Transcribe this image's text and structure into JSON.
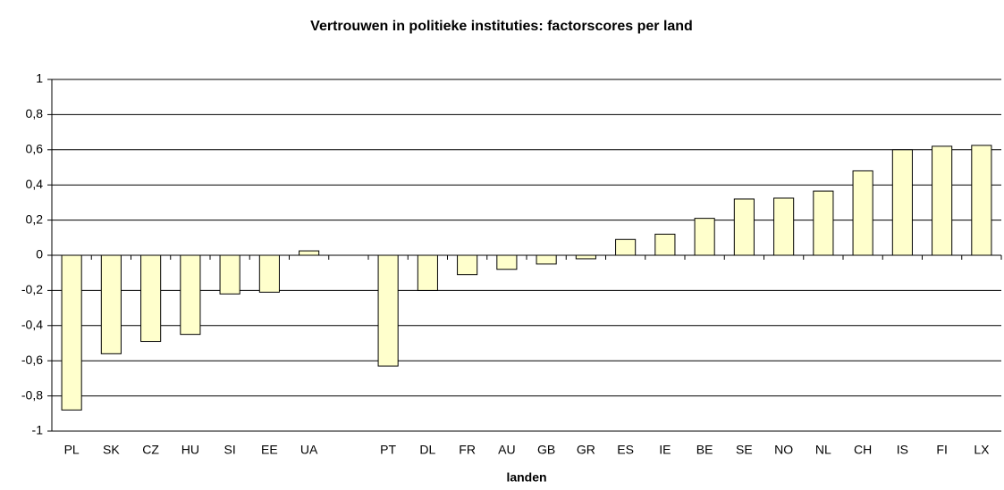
{
  "chart_data": {
    "type": "bar",
    "title": "Vertrouwen in politieke instituties: factorscores per land",
    "x_label": "landen",
    "categories": [
      "PL",
      "SK",
      "CZ",
      "HU",
      "SI",
      "EE",
      "UA",
      null,
      "PT",
      "DL",
      "FR",
      "AU",
      "GB",
      "GR",
      "ES",
      "IE",
      "BE",
      "SE",
      "NO",
      "NL",
      "CH",
      "IS",
      "FI",
      "LX"
    ],
    "values": [
      -0.88,
      -0.56,
      -0.49,
      -0.45,
      -0.22,
      -0.21,
      0.025,
      null,
      -0.63,
      -0.2,
      -0.11,
      -0.08,
      -0.05,
      -0.02,
      0.09,
      0.12,
      0.21,
      0.32,
      0.325,
      0.365,
      0.48,
      0.6,
      0.62,
      0.625
    ],
    "color": "#ffffcc",
    "ylim": [
      -1,
      1
    ],
    "yticks": [
      -1,
      {
        "value": -0.8,
        "label": "-0,8"
      },
      {
        "value": -0.6,
        "label": "-0,6"
      },
      {
        "value": -0.4,
        "label": "-0,4"
      },
      {
        "value": -0.2,
        "label": "-0,2"
      },
      0,
      {
        "value": 0.2,
        "label": "0,2"
      },
      {
        "value": 0.4,
        "label": "0,4"
      },
      {
        "value": 0.6,
        "label": "0,6"
      },
      {
        "value": 0.8,
        "label": "0,8"
      },
      1
    ],
    "grid": true
  }
}
